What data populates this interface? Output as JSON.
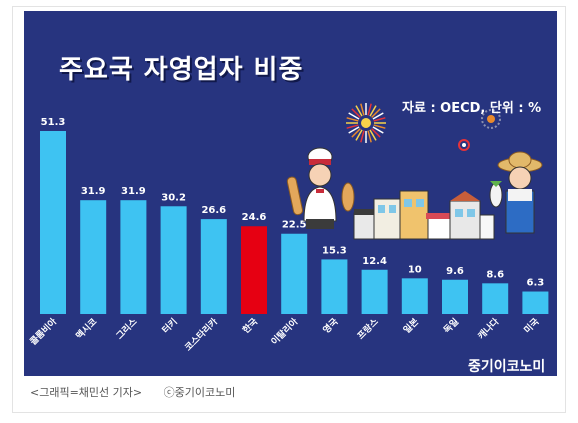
{
  "header": {
    "title": "주요국 자영업자 비중",
    "source": "자료 : OECD, 단위 : %"
  },
  "brand": "중기이코노미",
  "caption": {
    "credit": "<그래픽=채민선 기자>",
    "copyright": "ⓒ중기이코노미"
  },
  "colors": {
    "background": "#27347f",
    "bar": "#3ec3f2",
    "highlight": "#e60012",
    "text": "#ffffff"
  },
  "chart_data": {
    "type": "bar",
    "title": "주요국 자영업자 비중",
    "categories": [
      "콜롬비아",
      "멕시코",
      "그리스",
      "터키",
      "코스타리카",
      "한국",
      "이탈리아",
      "영국",
      "프랑스",
      "일본",
      "독일",
      "캐나다",
      "미국"
    ],
    "values": [
      51.3,
      31.9,
      31.9,
      30.2,
      26.6,
      24.6,
      22.5,
      15.3,
      12.4,
      10,
      9.6,
      8.6,
      6.3
    ],
    "value_labels": [
      "51.3",
      "31.9",
      "31.9",
      "30.2",
      "26.6",
      "24.6",
      "22.5",
      "15.3",
      "12.4",
      "10",
      "9.6",
      "8.6",
      "6.3"
    ],
    "highlight": "한국",
    "xlabel": "",
    "ylabel": "",
    "unit": "%",
    "ylim": [
      0,
      51.3
    ],
    "grid": false,
    "legend": "none"
  }
}
